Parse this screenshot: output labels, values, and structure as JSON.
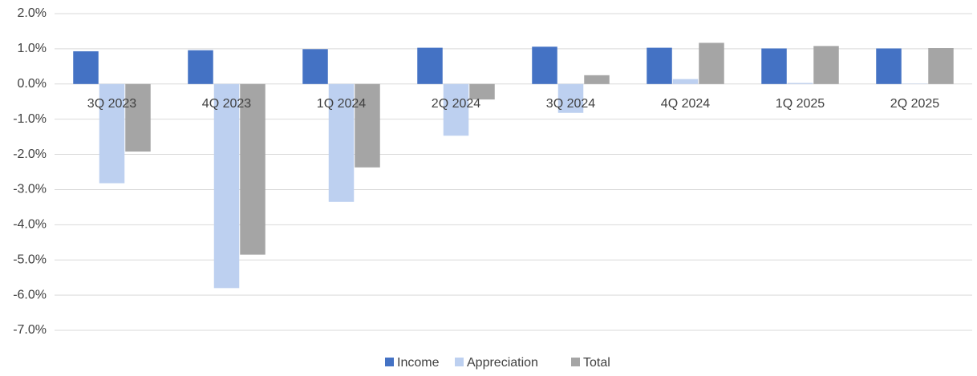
{
  "chart_data": {
    "type": "bar",
    "categories": [
      "3Q 2023",
      "4Q 2023",
      "1Q 2024",
      "2Q 2024",
      "3Q 2024",
      "4Q 2024",
      "1Q 2025",
      "2Q 2025"
    ],
    "series": [
      {
        "name": "Income",
        "color": "#4472c4",
        "values": [
          0.93,
          0.96,
          0.99,
          1.03,
          1.06,
          1.03,
          1.01,
          1.01
        ]
      },
      {
        "name": "Appreciation",
        "color": "#bdd0f0",
        "values": [
          -2.82,
          -5.8,
          -3.35,
          -1.47,
          -0.82,
          0.14,
          0.03,
          0.01
        ]
      },
      {
        "name": "Total",
        "color": "#a5a5a5",
        "values": [
          -1.92,
          -4.85,
          -2.37,
          -0.44,
          0.25,
          1.17,
          1.08,
          1.02
        ]
      }
    ],
    "ylim": [
      -7,
      2
    ],
    "yticks": [
      {
        "value": 2,
        "label": "2.0%"
      },
      {
        "value": 1,
        "label": "1.0%"
      },
      {
        "value": 0,
        "label": "0.0%"
      },
      {
        "value": -1,
        "label": "-1.0%"
      },
      {
        "value": -2,
        "label": "-2.0%"
      },
      {
        "value": -3,
        "label": "-3.0%"
      },
      {
        "value": -4,
        "label": "-4.0%"
      },
      {
        "value": -5,
        "label": "-5.0%"
      },
      {
        "value": -6,
        "label": "-6.0%"
      },
      {
        "value": -7,
        "label": "-7.0%"
      }
    ],
    "grid": true,
    "legend": "bottom"
  }
}
